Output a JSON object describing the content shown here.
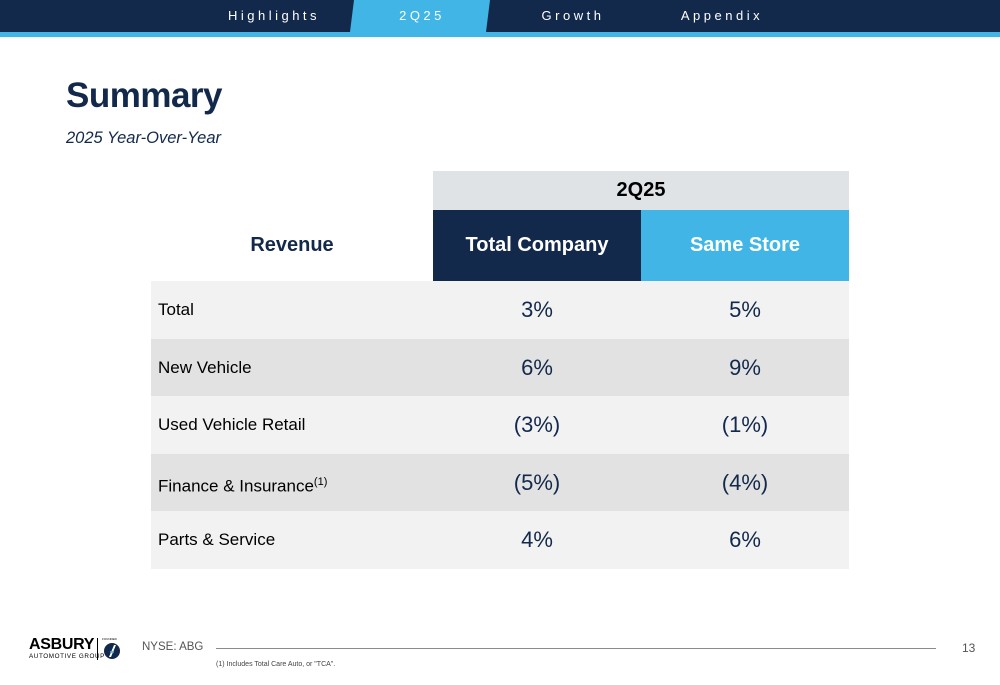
{
  "nav": {
    "items": [
      {
        "label": "Highlights",
        "active": false
      },
      {
        "label": "2Q25",
        "active": true
      },
      {
        "label": "Growth",
        "active": false
      },
      {
        "label": "Appendix",
        "active": false
      }
    ]
  },
  "colors": {
    "navy": "#13294b",
    "accent": "#41b6e6"
  },
  "title": "Summary",
  "subtitle": "2025 Year-Over-Year",
  "table": {
    "period_header": "2Q25",
    "row_header": "Revenue",
    "columns": [
      "Total Company",
      "Same Store"
    ],
    "rows": [
      {
        "label": "Total",
        "footnote_marker": "",
        "total_company": "3%",
        "same_store": "5%"
      },
      {
        "label": "New Vehicle",
        "footnote_marker": "",
        "total_company": "6%",
        "same_store": "9%"
      },
      {
        "label": "Used Vehicle Retail",
        "footnote_marker": "",
        "total_company": "(3%)",
        "same_store": "(1%)"
      },
      {
        "label": "Finance & Insurance",
        "footnote_marker": "(1)",
        "total_company": "(5%)",
        "same_store": "(4%)"
      },
      {
        "label": "Parts & Service",
        "footnote_marker": "",
        "total_company": "4%",
        "same_store": "6%"
      }
    ]
  },
  "footer": {
    "logo_text": "ASBURY",
    "logo_subtext": "AUTOMOTIVE GROUP",
    "logo_small": "FOUNDED",
    "ticker": "NYSE: ABG",
    "page_number": "13",
    "footnote": "(1) Includes Total Care Auto, or \"TCA\"."
  }
}
